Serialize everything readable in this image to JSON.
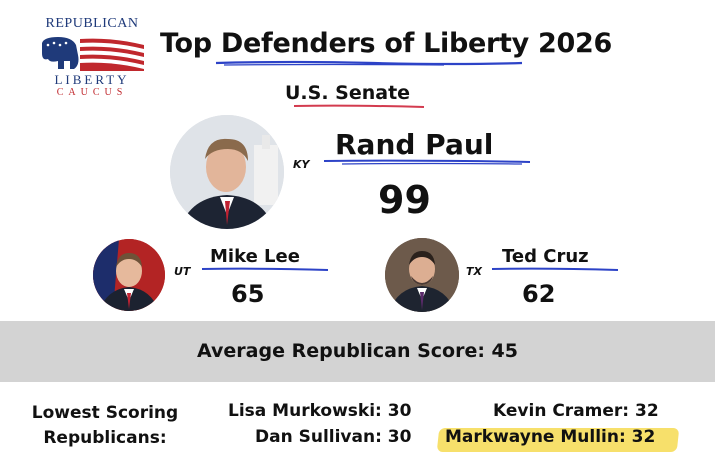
{
  "logo": {
    "line1": "REPUBLICAN",
    "line2": "LIBERTY",
    "line3": "CAUCUS",
    "colors": {
      "blue": "#1f3a7a",
      "red": "#c0282d"
    }
  },
  "title": "Top Defenders of Liberty 2026",
  "chamber": "U.S. Senate",
  "top": {
    "name": "Rand Paul",
    "state": "KY",
    "score": "99"
  },
  "runners_up": [
    {
      "name": "Mike Lee",
      "state": "UT",
      "score": "65"
    },
    {
      "name": "Ted Cruz",
      "state": "TX",
      "score": "62"
    }
  ],
  "average": "Average Republican Score: 45",
  "lowest": {
    "label_line1": "Lowest Scoring",
    "label_line2": "Republicans:",
    "items": [
      "Lisa Murkowski: 30",
      "Dan Sullivan: 30",
      "Kevin Cramer: 32",
      "Markwayne Mullin: 32"
    ]
  },
  "colors": {
    "underline_blue": "#2d43c7",
    "underline_red": "#d33b4f",
    "band_gray": "#d3d3d3",
    "highlight_yellow": "#f7e06b"
  }
}
